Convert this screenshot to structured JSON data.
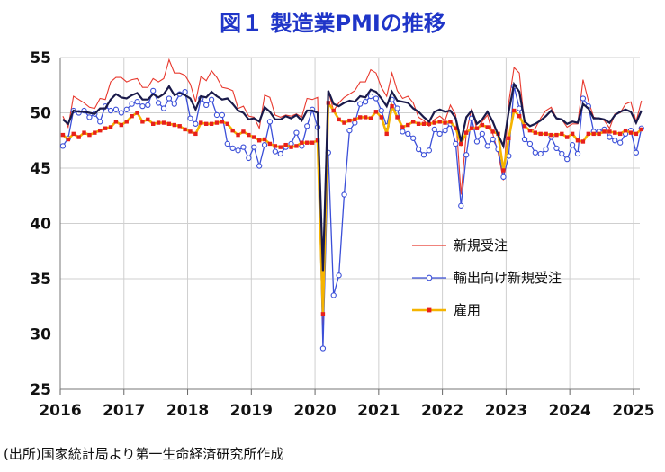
{
  "title": "図１ 製造業PMIの推移",
  "source": "(出所)国家統計局より第一生命経済研究所作成",
  "chart_data": {
    "type": "line",
    "title": "図１ 製造業PMIの推移",
    "xlabel": "",
    "ylabel": "",
    "ylim": [
      25,
      55
    ],
    "yticks": [
      25,
      30,
      35,
      40,
      45,
      50,
      55
    ],
    "xticks": [
      "2016",
      "2017",
      "2018",
      "2019",
      "2020",
      "2021",
      "2022",
      "2023",
      "2024",
      "2025"
    ],
    "grid": true,
    "legend_position": "center-right",
    "x_start": "2016-01",
    "x_end": "2025-02",
    "colors": {
      "title": "#1f35c8",
      "pmi": "#1a1a4a",
      "new_orders": "#e8392e",
      "export_orders": "#3b4fd8",
      "employment_line": "#f5b400",
      "employment_marker": "#e8201c"
    },
    "series": [
      {
        "name": "",
        "key": "pmi",
        "values": [
          49.4,
          49.0,
          50.2,
          50.1,
          50.1,
          50.0,
          49.9,
          50.4,
          50.4,
          51.2,
          51.7,
          51.4,
          51.3,
          51.6,
          51.8,
          51.2,
          51.2,
          51.7,
          51.4,
          51.7,
          52.4,
          51.6,
          51.8,
          51.6,
          51.3,
          50.3,
          51.5,
          51.4,
          51.9,
          51.5,
          51.2,
          51.3,
          50.8,
          50.2,
          50.0,
          49.4,
          49.5,
          49.2,
          50.5,
          50.1,
          49.4,
          49.4,
          49.7,
          49.5,
          49.8,
          49.3,
          50.2,
          50.2,
          50.0,
          35.7,
          52.0,
          50.8,
          50.6,
          50.9,
          51.1,
          51.0,
          51.5,
          51.4,
          52.1,
          51.9,
          51.3,
          50.6,
          51.9,
          51.1,
          51.0,
          50.9,
          50.4,
          50.1,
          49.6,
          49.2,
          50.1,
          50.3,
          50.1,
          50.2,
          49.5,
          47.4,
          49.6,
          50.2,
          49.0,
          49.4,
          50.1,
          49.2,
          48.0,
          47.0,
          50.1,
          52.6,
          51.9,
          49.2,
          48.8,
          49.0,
          49.3,
          49.7,
          50.2,
          49.5,
          49.4,
          49.0,
          49.2,
          49.1,
          50.8,
          50.4,
          49.5,
          49.5,
          49.4,
          49.1,
          49.8,
          50.1,
          50.3,
          50.1,
          49.1,
          50.2
        ]
      },
      {
        "name": "新規受注",
        "key": "new_orders",
        "values": [
          49.7,
          48.7,
          51.5,
          51.2,
          50.9,
          50.5,
          50.4,
          51.3,
          51.2,
          52.8,
          53.2,
          53.2,
          52.8,
          53.0,
          53.1,
          52.3,
          52.3,
          53.1,
          52.8,
          53.1,
          54.8,
          53.6,
          53.6,
          53.4,
          52.6,
          51.0,
          53.3,
          52.9,
          53.8,
          53.2,
          52.3,
          52.2,
          52.0,
          50.4,
          50.6,
          49.7,
          49.6,
          48.6,
          51.6,
          51.4,
          49.8,
          49.6,
          49.8,
          49.7,
          49.9,
          49.6,
          51.3,
          51.2,
          51.4,
          29.3,
          52.0,
          50.2,
          50.9,
          51.4,
          51.7,
          52.0,
          52.8,
          52.8,
          53.9,
          53.6,
          52.3,
          51.5,
          53.6,
          52.0,
          51.3,
          51.5,
          50.9,
          49.6,
          49.3,
          48.8,
          49.4,
          49.7,
          49.3,
          50.7,
          49.8,
          42.6,
          48.2,
          50.4,
          48.5,
          49.2,
          49.8,
          48.1,
          46.4,
          43.9,
          50.9,
          54.1,
          53.6,
          48.8,
          48.3,
          48.6,
          49.5,
          50.2,
          50.5,
          49.5,
          49.4,
          48.7,
          49.0,
          49.0,
          53.0,
          51.1,
          49.6,
          49.5,
          49.3,
          48.6,
          49.9,
          50.0,
          50.8,
          51.0,
          49.2,
          51.1
        ]
      },
      {
        "name": "輸出向け新規受注",
        "key": "export_orders",
        "values": [
          47.0,
          47.7,
          50.2,
          50.0,
          50.2,
          49.6,
          49.9,
          49.2,
          50.6,
          50.2,
          50.3,
          50.0,
          50.3,
          50.8,
          51.0,
          50.6,
          50.7,
          52.0,
          50.9,
          50.4,
          51.3,
          50.8,
          51.7,
          51.9,
          49.5,
          49.0,
          51.3,
          50.7,
          51.2,
          49.8,
          49.8,
          47.2,
          46.8,
          46.6,
          46.9,
          45.9,
          46.9,
          45.2,
          47.1,
          49.2,
          46.5,
          46.3,
          46.9,
          47.2,
          48.2,
          47.0,
          48.8,
          50.3,
          48.7,
          28.7,
          46.4,
          33.5,
          35.3,
          42.6,
          48.4,
          49.1,
          50.8,
          51.0,
          51.5,
          51.3,
          50.2,
          48.8,
          51.2,
          50.4,
          48.3,
          48.1,
          47.7,
          46.7,
          46.2,
          46.6,
          48.5,
          48.1,
          48.4,
          49.0,
          47.2,
          41.6,
          46.2,
          49.5,
          47.4,
          48.1,
          47.0,
          47.6,
          46.7,
          44.2,
          46.1,
          52.4,
          50.4,
          47.6,
          47.2,
          46.4,
          46.3,
          46.7,
          47.8,
          46.8,
          46.3,
          45.8,
          47.1,
          46.3,
          51.3,
          50.6,
          48.3,
          48.3,
          48.5,
          47.8,
          47.5,
          47.3,
          48.1,
          48.4,
          46.4,
          48.6
        ]
      },
      {
        "name": "雇用",
        "key": "employment",
        "values": [
          48.0,
          47.6,
          48.1,
          47.8,
          48.2,
          48.0,
          48.2,
          48.4,
          48.6,
          48.7,
          49.2,
          48.9,
          49.2,
          49.7,
          50.0,
          49.2,
          49.4,
          49.0,
          49.1,
          49.1,
          49.0,
          48.9,
          48.8,
          48.5,
          48.3,
          48.1,
          49.1,
          49.0,
          49.0,
          49.1,
          49.2,
          49.0,
          48.4,
          48.0,
          48.3,
          48.0,
          47.8,
          47.5,
          47.6,
          47.2,
          47.0,
          46.9,
          47.1,
          46.9,
          47.0,
          47.3,
          47.3,
          47.3,
          47.5,
          31.8,
          50.9,
          50.2,
          49.4,
          49.1,
          49.3,
          49.4,
          49.6,
          49.6,
          49.5,
          50.1,
          49.6,
          48.1,
          50.6,
          49.6,
          48.7,
          48.9,
          49.2,
          49.0,
          49.0,
          49.0,
          49.1,
          49.2,
          49.1,
          49.2,
          48.6,
          47.2,
          48.2,
          48.6,
          48.6,
          48.9,
          48.7,
          48.3,
          48.1,
          44.8,
          47.7,
          50.2,
          49.7,
          48.8,
          48.4,
          48.2,
          48.1,
          48.1,
          48.0,
          48.0,
          48.1,
          47.8,
          48.1,
          47.5,
          47.4,
          48.1,
          48.1,
          48.1,
          48.3,
          48.3,
          48.2,
          48.1,
          48.4,
          48.2,
          48.1,
          48.5
        ]
      }
    ]
  }
}
